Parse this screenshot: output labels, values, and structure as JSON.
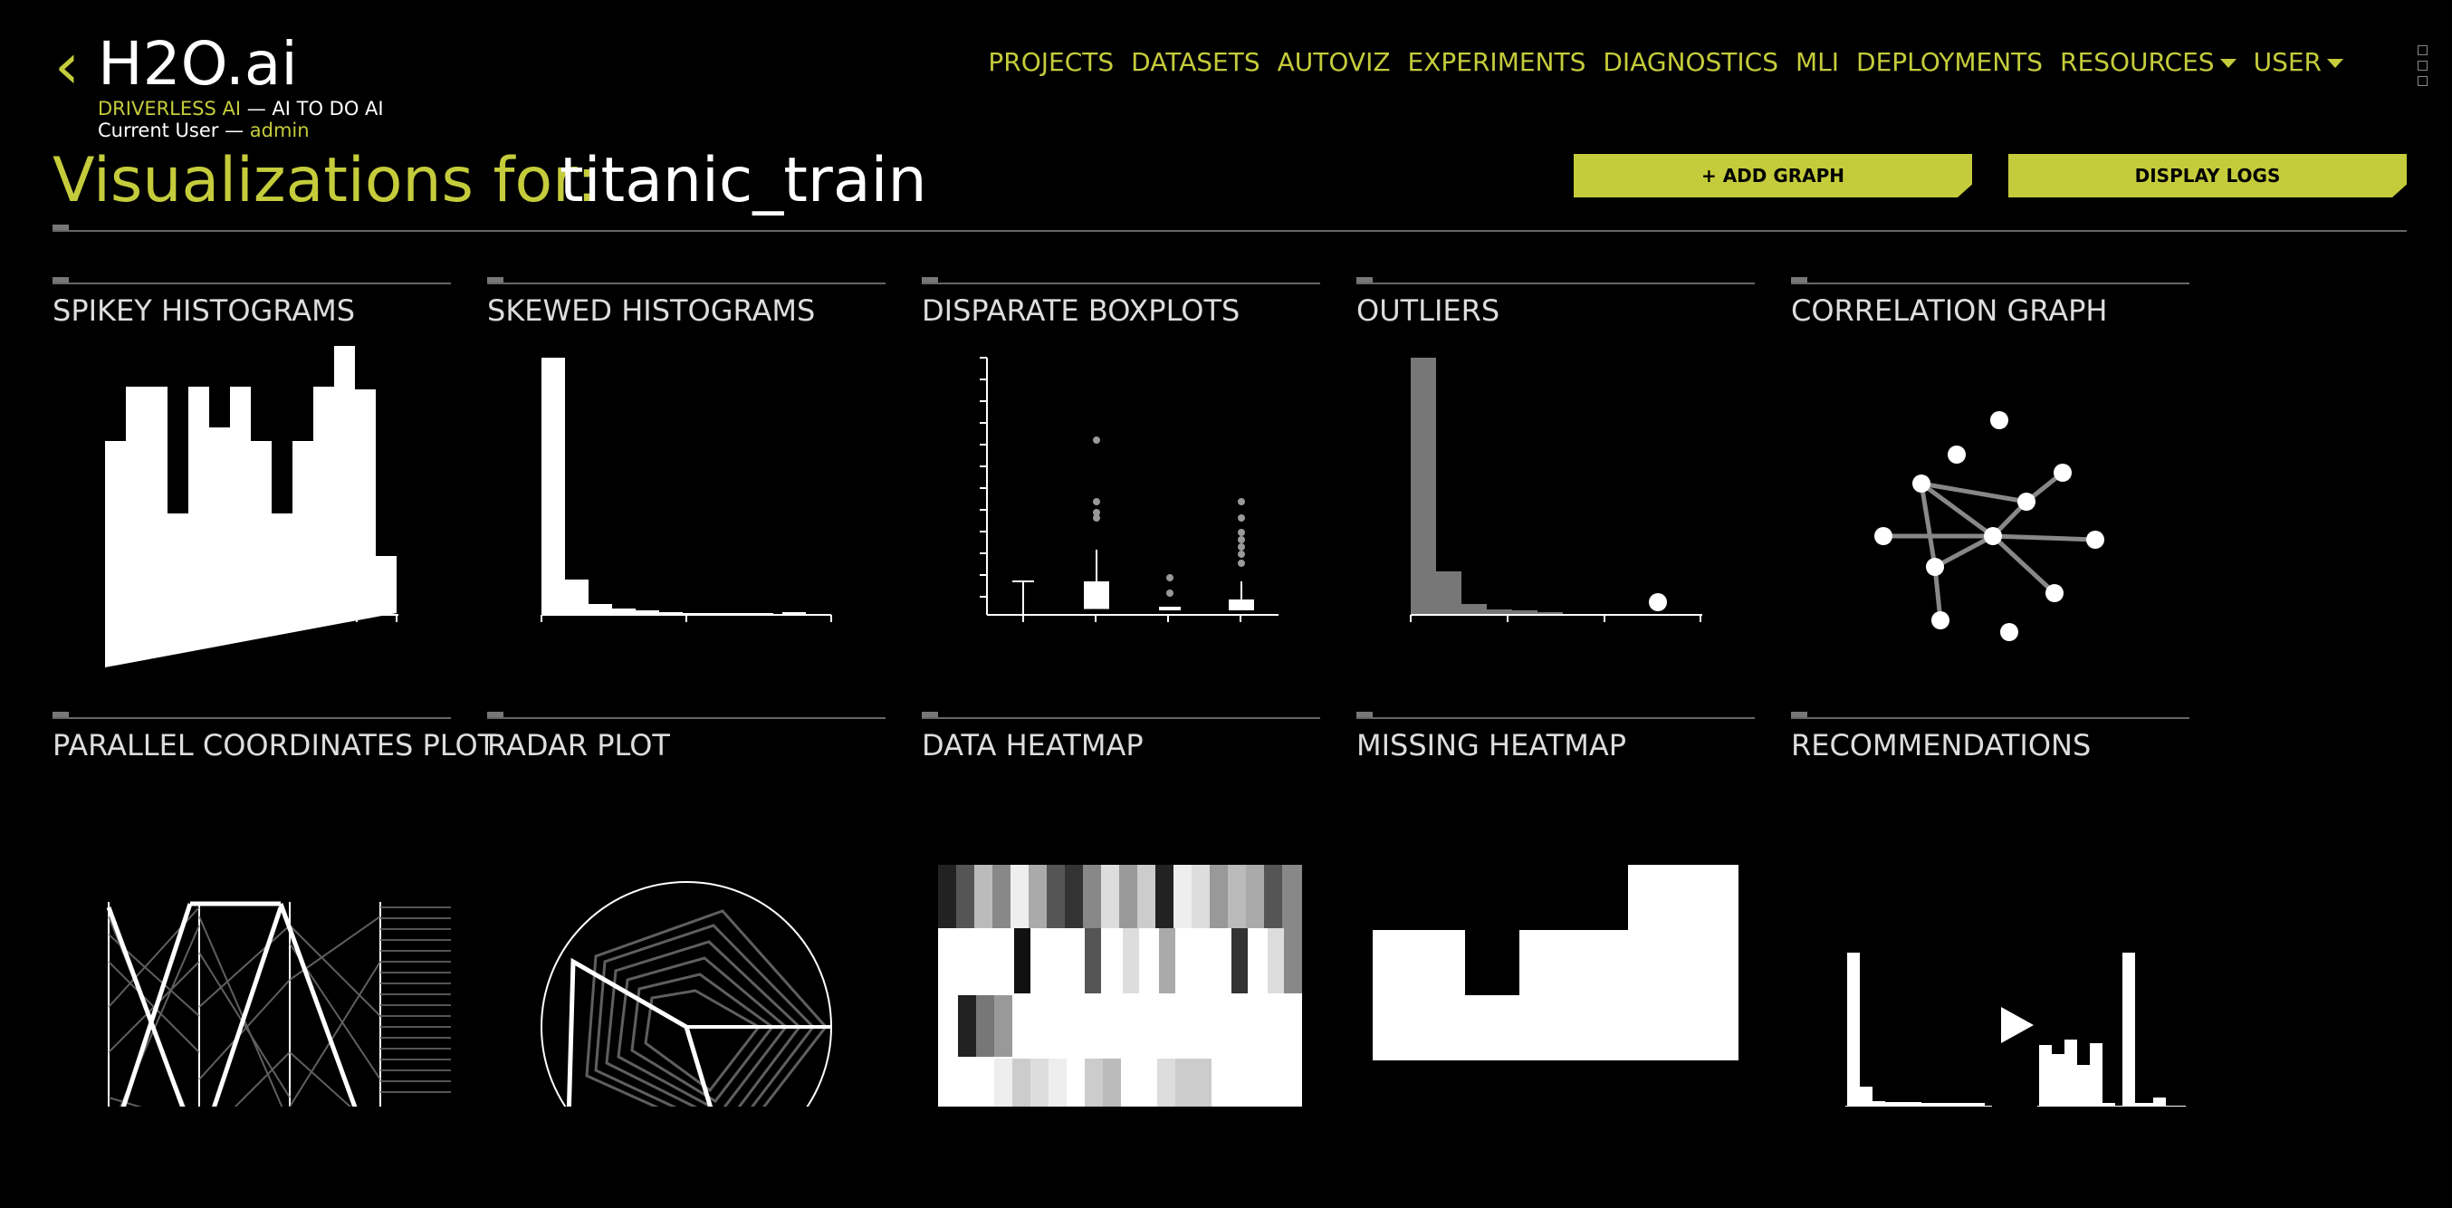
{
  "header": {
    "back_glyph": "‹",
    "logo": "H2O.ai",
    "product": "DRIVERLESS AI",
    "tagline": " — AI TO DO AI",
    "current_user_label": "Current User — ",
    "current_user": "admin"
  },
  "nav": {
    "projects": "PROJECTS",
    "datasets": "DATASETS",
    "autoviz": "AUTOVIZ",
    "experiments": "EXPERIMENTS",
    "diagnostics": "DIAGNOSTICS",
    "mli": "MLI",
    "deployments": "DEPLOYMENTS",
    "resources": "RESOURCES",
    "user": "USER"
  },
  "page": {
    "title": "Visualizations for:",
    "dataset": "titanic_train",
    "add_graph": "+ ADD GRAPH",
    "display_logs": "DISPLAY LOGS"
  },
  "cards": {
    "spikey": "SPIKEY HISTOGRAMS",
    "skewed": "SKEWED HISTOGRAMS",
    "boxplots": "DISPARATE BOXPLOTS",
    "outliers": "OUTLIERS",
    "correlation": "CORRELATION GRAPH",
    "parallel": "PARALLEL COORDINATES PLOT",
    "radar": "RADAR PLOT",
    "heatmap": "DATA HEATMAP",
    "missing": "MISSING HEATMAP",
    "recommendations": "RECOMMENDATIONS"
  },
  "colors": {
    "accent": "#c5cc3b",
    "background": "#000000"
  },
  "icons": {
    "menu": "grid-dots-icon",
    "back": "chevron-left-icon",
    "dropdown": "caret-down-icon"
  }
}
